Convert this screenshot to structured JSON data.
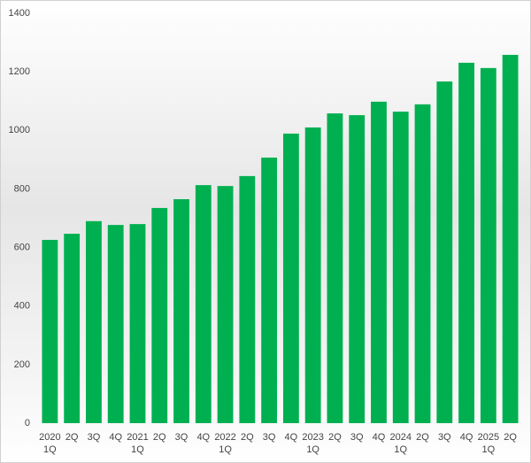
{
  "chart_data": {
    "type": "bar",
    "categories": [
      [
        "2020",
        "1Q"
      ],
      "2Q",
      "3Q",
      "4Q",
      [
        "2021",
        "1Q"
      ],
      "2Q",
      "3Q",
      "4Q",
      [
        "2022",
        "1Q"
      ],
      "2Q",
      "3Q",
      "4Q",
      [
        "2023",
        "1Q"
      ],
      "2Q",
      "3Q",
      "4Q",
      [
        "2024",
        "1Q"
      ],
      "2Q",
      "3Q",
      "4Q",
      [
        "2025",
        "1Q"
      ],
      "2Q"
    ],
    "values": [
      626,
      647,
      690,
      677,
      680,
      735,
      765,
      813,
      810,
      844,
      907,
      989,
      1010,
      1058,
      1052,
      1098,
      1064,
      1089,
      1167,
      1231,
      1213,
      1258
    ],
    "color": "#00b050",
    "ylim": [
      0,
      1400
    ],
    "yticks": [
      0,
      200,
      400,
      600,
      800,
      1000,
      1200,
      1400
    ],
    "grid": false
  }
}
